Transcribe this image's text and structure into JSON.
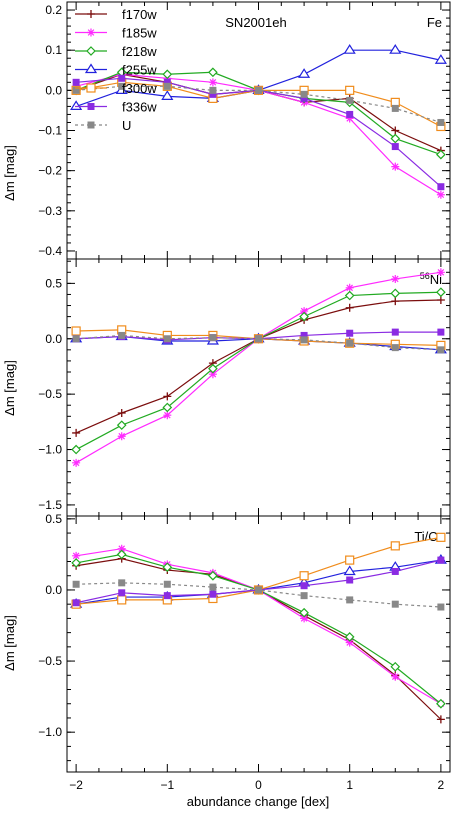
{
  "chart_data": {
    "type": "line",
    "xlabel": "abundance change [dex]",
    "ylabel": "Δm [mag]",
    "x": [
      -2,
      -1.5,
      -1,
      -0.5,
      0,
      0.5,
      1,
      1.5,
      2
    ],
    "xlim": [
      -2.1,
      2.1
    ],
    "xticks": [
      -2,
      -1,
      0,
      1,
      2
    ],
    "xtick_labels": [
      "−2",
      "−1",
      "0",
      "1",
      "2"
    ],
    "y_inverted": true,
    "grid": false,
    "series_styles": [
      {
        "name": "f170w",
        "color": "#7b0d0d",
        "marker": "plus",
        "dash": false
      },
      {
        "name": "f185w",
        "color": "#ff2bff",
        "marker": "asterisk",
        "dash": false
      },
      {
        "name": "f218w",
        "color": "#22aa22",
        "marker": "diamond",
        "dash": false
      },
      {
        "name": "f255w",
        "color": "#2222dd",
        "marker": "triangle",
        "dash": false
      },
      {
        "name": "f300w",
        "color": "#f08c1c",
        "marker": "square-open",
        "dash": false
      },
      {
        "name": "f336w",
        "color": "#8a2be2",
        "marker": "square-filled",
        "dash": false
      },
      {
        "name": "U",
        "color": "#888888",
        "marker": "square-filled",
        "dash": true
      }
    ],
    "panels": [
      {
        "title": "SN2001eh",
        "element_label": "Fe",
        "element_sup": "",
        "ylim": [
          0.22,
          -0.42
        ],
        "yticks": [
          0.2,
          0.1,
          0.0,
          -0.1,
          -0.2,
          -0.3,
          -0.4
        ],
        "ytick_labels": [
          "0.2",
          "0.1",
          "0.0",
          "−0.1",
          "−0.2",
          "−0.3",
          "−0.4"
        ],
        "legend": "top-left",
        "series": [
          {
            "name": "f170w",
            "values": [
              0.0,
              0.04,
              0.02,
              -0.01,
              0.0,
              -0.03,
              -0.02,
              -0.1,
              -0.15
            ]
          },
          {
            "name": "f185w",
            "values": [
              0.01,
              0.04,
              0.03,
              0.02,
              0.0,
              -0.03,
              -0.07,
              -0.19,
              -0.26
            ]
          },
          {
            "name": "f218w",
            "values": [
              0.0,
              0.045,
              0.04,
              0.045,
              0.0,
              -0.02,
              -0.03,
              -0.12,
              -0.16
            ]
          },
          {
            "name": "f255w",
            "values": [
              -0.04,
              0.0,
              -0.015,
              -0.02,
              0.0,
              0.04,
              0.1,
              0.1,
              0.075
            ]
          },
          {
            "name": "f300w",
            "values": [
              0.0,
              0.02,
              0.01,
              -0.02,
              0.0,
              0.0,
              0.0,
              -0.03,
              -0.09
            ]
          },
          {
            "name": "f336w",
            "values": [
              0.02,
              0.03,
              0.02,
              -0.01,
              0.0,
              -0.02,
              -0.06,
              -0.14,
              -0.24
            ]
          },
          {
            "name": "U",
            "values": [
              0.0,
              0.01,
              0.01,
              0.0,
              0.0,
              -0.01,
              -0.025,
              -0.045,
              -0.08
            ]
          }
        ]
      },
      {
        "title": "",
        "element_label": "Ni",
        "element_sup": "56",
        "ylim": [
          0.72,
          -1.6
        ],
        "yticks": [
          0.5,
          0.0,
          -0.5,
          -1.0,
          -1.5
        ],
        "ytick_labels": [
          "0.5",
          "0.0",
          "−0.5",
          "−1.0",
          "−1.5"
        ],
        "series": [
          {
            "name": "f170w",
            "values": [
              -0.85,
              -0.67,
              -0.52,
              -0.22,
              0.0,
              0.17,
              0.28,
              0.34,
              0.35
            ]
          },
          {
            "name": "f185w",
            "values": [
              -1.12,
              -0.88,
              -0.69,
              -0.32,
              0.0,
              0.25,
              0.46,
              0.54,
              0.6
            ]
          },
          {
            "name": "f218w",
            "values": [
              -1.0,
              -0.78,
              -0.62,
              -0.27,
              0.0,
              0.2,
              0.39,
              0.41,
              0.42
            ]
          },
          {
            "name": "f255w",
            "values": [
              0.0,
              0.02,
              -0.02,
              -0.02,
              0.0,
              -0.02,
              -0.04,
              -0.07,
              -0.1
            ]
          },
          {
            "name": "f300w",
            "values": [
              0.07,
              0.08,
              0.03,
              0.03,
              0.0,
              -0.02,
              -0.04,
              -0.05,
              -0.06
            ]
          },
          {
            "name": "f336w",
            "values": [
              0.0,
              0.02,
              -0.01,
              0.01,
              0.0,
              0.03,
              0.05,
              0.06,
              0.06
            ]
          },
          {
            "name": "U",
            "values": [
              0.0,
              0.03,
              0.0,
              0.01,
              0.0,
              -0.01,
              -0.04,
              -0.08,
              -0.1
            ]
          }
        ]
      },
      {
        "title": "",
        "element_label": "Ti/Cr",
        "element_sup": "",
        "ylim": [
          0.52,
          -1.28
        ],
        "yticks": [
          0.5,
          0.0,
          -0.5,
          -1.0
        ],
        "ytick_labels": [
          "0.5",
          "0.0",
          "−0.5",
          "−1.0"
        ],
        "series": [
          {
            "name": "f170w",
            "values": [
              0.17,
              0.22,
              0.14,
              0.11,
              0.0,
              -0.18,
              -0.35,
              -0.6,
              -0.91
            ]
          },
          {
            "name": "f185w",
            "values": [
              0.24,
              0.29,
              0.18,
              0.12,
              0.0,
              -0.2,
              -0.37,
              -0.61,
              -0.8
            ]
          },
          {
            "name": "f218w",
            "values": [
              0.19,
              0.25,
              0.16,
              0.1,
              0.0,
              -0.16,
              -0.33,
              -0.54,
              -0.8
            ]
          },
          {
            "name": "f255w",
            "values": [
              -0.1,
              -0.05,
              -0.05,
              -0.03,
              0.0,
              0.05,
              0.13,
              0.16,
              0.21
            ]
          },
          {
            "name": "f300w",
            "values": [
              -0.1,
              -0.07,
              -0.07,
              -0.06,
              0.0,
              0.1,
              0.21,
              0.31,
              0.37
            ]
          },
          {
            "name": "f336w",
            "values": [
              -0.09,
              -0.02,
              -0.04,
              -0.03,
              0.0,
              0.03,
              0.07,
              0.13,
              0.21
            ]
          },
          {
            "name": "U",
            "values": [
              0.04,
              0.05,
              0.04,
              0.02,
              0.0,
              -0.04,
              -0.07,
              -0.1,
              -0.12
            ]
          }
        ]
      }
    ]
  }
}
